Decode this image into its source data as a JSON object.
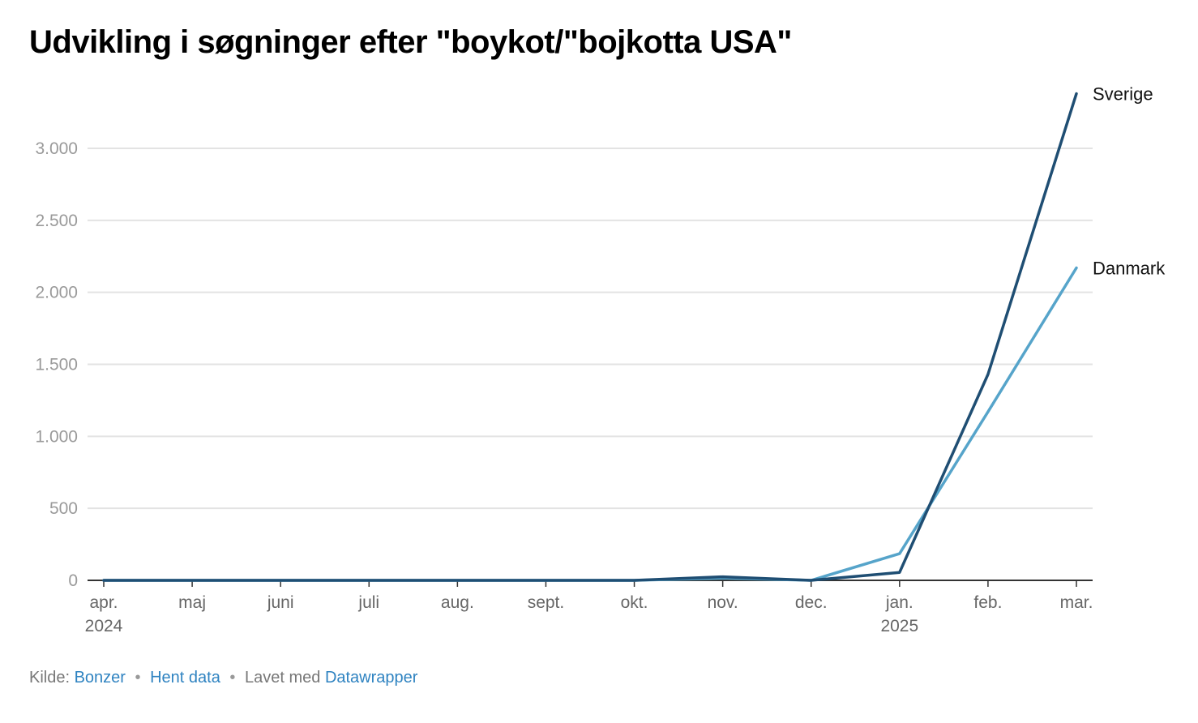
{
  "title": "Udvikling i søgninger efter \"boykot/\"bojkotta USA\"",
  "footer": {
    "source_prefix": "Kilde:",
    "source_link": "Bonzer",
    "separator": "•",
    "data_link": "Hent data",
    "made_with_prefix": "Lavet med",
    "made_with_link": "Datawrapper"
  },
  "colors": {
    "sverige": "#1f4e73",
    "danmark": "#56a4ca",
    "grid": "#e3e3e3",
    "axis": "#333333",
    "tick_text": "#9a9a9a",
    "month_text": "#666666"
  },
  "chart_data": {
    "type": "line",
    "title": "Udvikling i søgninger efter \"boykot/\"bojkotta USA\"",
    "xlabel": "",
    "ylabel": "",
    "ylim": [
      0,
      3400
    ],
    "yticks": [
      0,
      500,
      1000,
      1500,
      2000,
      2500,
      3000
    ],
    "ytick_labels": [
      "0",
      "500",
      "1.000",
      "1.500",
      "2.000",
      "2.500",
      "3.000"
    ],
    "categories": [
      "apr.",
      "maj",
      "juni",
      "juli",
      "aug.",
      "sept.",
      "okt.",
      "nov.",
      "dec.",
      "jan.",
      "feb.",
      "mar."
    ],
    "year_labels": [
      {
        "index": 0,
        "label": "2024"
      },
      {
        "index": 9,
        "label": "2025"
      }
    ],
    "grid": true,
    "legend": "inline labels at line ends",
    "series": [
      {
        "name": "Sverige",
        "values": [
          0,
          0,
          0,
          0,
          0,
          0,
          0,
          25,
          0,
          55,
          1430,
          3380
        ]
      },
      {
        "name": "Danmark",
        "values": [
          0,
          0,
          0,
          0,
          0,
          0,
          0,
          15,
          0,
          185,
          1170,
          2170
        ]
      }
    ]
  }
}
